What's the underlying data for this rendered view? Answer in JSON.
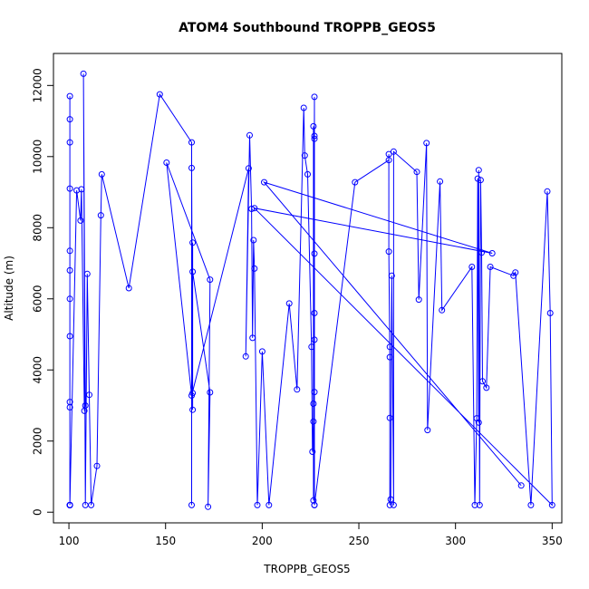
{
  "chart_data": {
    "type": "line",
    "title": "ATOM4 Southbound TROPPB_GEOS5",
    "xlabel": "TROPPB_GEOS5",
    "ylabel": "Altitude (m)",
    "xlim": [
      92,
      355
    ],
    "ylim": [
      -300,
      12900
    ],
    "xticks": [
      100,
      150,
      200,
      250,
      300,
      350
    ],
    "yticks": [
      0,
      2000,
      4000,
      6000,
      8000,
      10000,
      12000
    ],
    "grid": false,
    "legend": "none",
    "line_color": "#0000ff",
    "marker": "open-circle",
    "series": [
      {
        "points": [
          [
            100.5,
            200
          ],
          [
            100.5,
            11700
          ],
          [
            100.5,
            200
          ],
          [
            100.5,
            11050
          ],
          [
            100.5,
            200
          ],
          [
            100.5,
            10400
          ],
          [
            100.5,
            200
          ],
          [
            100.5,
            9100
          ],
          [
            100.5,
            200
          ],
          [
            100.5,
            7350
          ],
          [
            100.5,
            6800
          ],
          [
            100.5,
            6000
          ],
          [
            100.5,
            4950
          ],
          [
            100.5,
            3100
          ],
          [
            100.5,
            2950
          ],
          [
            100.5,
            200
          ],
          [
            104,
            9050
          ],
          [
            106,
            8200
          ],
          [
            106.5,
            9080
          ],
          [
            108,
            2850
          ],
          [
            108.5,
            3000
          ],
          [
            107.5,
            12330
          ],
          [
            108.5,
            200
          ],
          [
            109.5,
            6700
          ],
          [
            110.5,
            3300
          ],
          [
            111.5,
            200
          ],
          [
            114.5,
            1300
          ],
          [
            116.5,
            8350
          ],
          [
            117,
            9500
          ],
          [
            131,
            6300
          ],
          [
            147,
            11750
          ],
          [
            163.5,
            10400
          ],
          [
            163.5,
            200
          ],
          [
            163.5,
            9680
          ],
          [
            164,
            2880
          ],
          [
            164,
            3350
          ],
          [
            164,
            7580
          ],
          [
            164,
            6760
          ],
          [
            173,
            3370
          ],
          [
            172,
            150
          ],
          [
            173,
            6540
          ],
          [
            150.5,
            9830
          ],
          [
            163.5,
            3280
          ],
          [
            193,
            9670
          ],
          [
            191.5,
            4380
          ],
          [
            193.5,
            10600
          ],
          [
            194.5,
            8530
          ],
          [
            195,
            4900
          ],
          [
            195.5,
            7650
          ],
          [
            196,
            6850
          ],
          [
            197.5,
            200
          ],
          [
            200,
            4520
          ],
          [
            203.5,
            200
          ],
          [
            214,
            5870
          ],
          [
            218,
            3450
          ],
          [
            221.5,
            11370
          ],
          [
            222,
            10030
          ],
          [
            223.5,
            9500
          ],
          [
            225.5,
            4650
          ],
          [
            226,
            1700
          ],
          [
            226.5,
            2550
          ],
          [
            226.5,
            3050
          ],
          [
            226.5,
            10850
          ],
          [
            226.5,
            330
          ],
          [
            227,
            11680
          ],
          [
            227,
            10580
          ],
          [
            227,
            200
          ],
          [
            227,
            10500
          ],
          [
            227,
            7270
          ],
          [
            227,
            5600
          ],
          [
            227,
            4850
          ],
          [
            227,
            3380
          ],
          [
            227,
            200
          ],
          [
            248,
            9280
          ],
          [
            265.5,
            9900
          ],
          [
            265.5,
            10070
          ],
          [
            265.5,
            7330
          ],
          [
            266,
            4360
          ],
          [
            266,
            4650
          ],
          [
            266,
            2650
          ],
          [
            266,
            200
          ],
          [
            266.5,
            360
          ],
          [
            267,
            6650
          ],
          [
            268,
            200
          ],
          [
            268,
            10140
          ],
          [
            280,
            9570
          ],
          [
            281,
            5980
          ],
          [
            285,
            10380
          ],
          [
            285.5,
            2310
          ],
          [
            292,
            9300
          ],
          [
            293,
            5680
          ],
          [
            308.5,
            6900
          ],
          [
            310,
            200
          ],
          [
            311,
            2640
          ],
          [
            311.5,
            9380
          ],
          [
            312,
            2520
          ],
          [
            312,
            9620
          ],
          [
            312.5,
            200
          ],
          [
            313,
            9340
          ],
          [
            313.5,
            7300
          ],
          [
            314,
            3680
          ],
          [
            316,
            3500
          ],
          [
            318,
            6900
          ],
          [
            330,
            6650
          ],
          [
            331,
            6740
          ],
          [
            339,
            200
          ],
          [
            347.5,
            9020
          ],
          [
            349,
            5600
          ],
          [
            350,
            200
          ],
          [
            196,
            8550
          ],
          [
            319,
            7280
          ],
          [
            201,
            9280
          ],
          [
            334,
            750
          ]
        ]
      }
    ]
  }
}
